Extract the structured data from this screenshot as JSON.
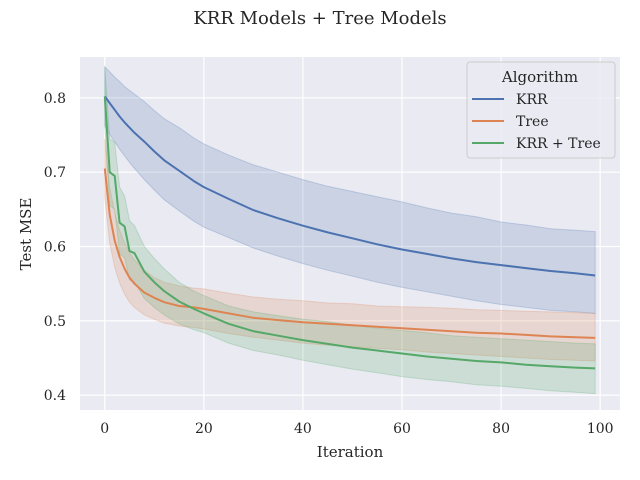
{
  "chart_data": {
    "type": "line",
    "title": "KRR Models + Tree Models",
    "xlabel": "Iteration",
    "ylabel": "Test MSE",
    "xlim": [
      -5,
      104
    ],
    "ylim": [
      0.38,
      0.855
    ],
    "xticks": [
      0,
      20,
      40,
      60,
      80,
      100
    ],
    "yticks": [
      0.4,
      0.5,
      0.6,
      0.7,
      0.8
    ],
    "xtick_labels": [
      "0",
      "20",
      "40",
      "60",
      "80",
      "100"
    ],
    "ytick_labels": [
      "0.4",
      "0.5",
      "0.6",
      "0.7",
      "0.8"
    ],
    "grid": true,
    "legend": {
      "title": "Algorithm",
      "position": "top-right"
    },
    "x": [
      0,
      1,
      2,
      3,
      4,
      5,
      6,
      8,
      10,
      12,
      15,
      18,
      20,
      25,
      30,
      35,
      40,
      45,
      50,
      55,
      60,
      65,
      70,
      75,
      80,
      85,
      90,
      95,
      99
    ],
    "series": [
      {
        "name": "KRR",
        "color": "#4c72b0",
        "values": [
          0.802,
          0.793,
          0.784,
          0.775,
          0.767,
          0.76,
          0.753,
          0.741,
          0.728,
          0.716,
          0.702,
          0.688,
          0.68,
          0.664,
          0.649,
          0.638,
          0.628,
          0.619,
          0.611,
          0.603,
          0.596,
          0.59,
          0.584,
          0.579,
          0.575,
          0.571,
          0.567,
          0.564,
          0.561
        ],
        "upper": [
          0.842,
          0.835,
          0.828,
          0.822,
          0.815,
          0.81,
          0.805,
          0.795,
          0.783,
          0.772,
          0.76,
          0.746,
          0.738,
          0.723,
          0.71,
          0.7,
          0.69,
          0.681,
          0.674,
          0.667,
          0.66,
          0.652,
          0.645,
          0.64,
          0.633,
          0.629,
          0.624,
          0.622,
          0.62
        ],
        "lower": [
          0.762,
          0.751,
          0.741,
          0.731,
          0.722,
          0.713,
          0.705,
          0.69,
          0.676,
          0.663,
          0.648,
          0.634,
          0.626,
          0.612,
          0.598,
          0.587,
          0.577,
          0.568,
          0.56,
          0.552,
          0.545,
          0.539,
          0.533,
          0.527,
          0.522,
          0.518,
          0.514,
          0.512,
          0.51
        ]
      },
      {
        "name": "Tree",
        "color": "#dd8452",
        "values": [
          0.705,
          0.643,
          0.608,
          0.586,
          0.57,
          0.558,
          0.55,
          0.538,
          0.531,
          0.525,
          0.52,
          0.518,
          0.516,
          0.51,
          0.504,
          0.501,
          0.498,
          0.496,
          0.494,
          0.492,
          0.49,
          0.488,
          0.486,
          0.484,
          0.483,
          0.481,
          0.479,
          0.478,
          0.477
        ],
        "upper": [
          0.745,
          0.68,
          0.645,
          0.622,
          0.605,
          0.592,
          0.582,
          0.568,
          0.558,
          0.552,
          0.547,
          0.544,
          0.543,
          0.537,
          0.532,
          0.529,
          0.527,
          0.524,
          0.523,
          0.52,
          0.519,
          0.518,
          0.517,
          0.515,
          0.514,
          0.513,
          0.512,
          0.511,
          0.51
        ],
        "lower": [
          0.665,
          0.605,
          0.572,
          0.551,
          0.536,
          0.525,
          0.518,
          0.508,
          0.502,
          0.497,
          0.493,
          0.491,
          0.489,
          0.483,
          0.478,
          0.474,
          0.47,
          0.467,
          0.465,
          0.463,
          0.461,
          0.458,
          0.456,
          0.454,
          0.452,
          0.45,
          0.448,
          0.447,
          0.446
        ]
      },
      {
        "name": "KRR + Tree",
        "color": "#55a868",
        "values": [
          0.802,
          0.7,
          0.695,
          0.632,
          0.627,
          0.594,
          0.591,
          0.566,
          0.552,
          0.54,
          0.526,
          0.516,
          0.51,
          0.496,
          0.486,
          0.48,
          0.474,
          0.469,
          0.464,
          0.46,
          0.456,
          0.452,
          0.449,
          0.446,
          0.444,
          0.441,
          0.439,
          0.437,
          0.436
        ],
        "upper": [
          0.842,
          0.745,
          0.74,
          0.68,
          0.668,
          0.635,
          0.628,
          0.6,
          0.584,
          0.57,
          0.552,
          0.54,
          0.534,
          0.52,
          0.512,
          0.507,
          0.502,
          0.499,
          0.494,
          0.49,
          0.487,
          0.484,
          0.48,
          0.478,
          0.476,
          0.474,
          0.472,
          0.47,
          0.469
        ],
        "lower": [
          0.762,
          0.655,
          0.65,
          0.59,
          0.585,
          0.555,
          0.552,
          0.53,
          0.518,
          0.508,
          0.496,
          0.488,
          0.484,
          0.47,
          0.46,
          0.454,
          0.447,
          0.441,
          0.435,
          0.43,
          0.425,
          0.421,
          0.418,
          0.414,
          0.412,
          0.409,
          0.406,
          0.404,
          0.402
        ]
      }
    ]
  }
}
